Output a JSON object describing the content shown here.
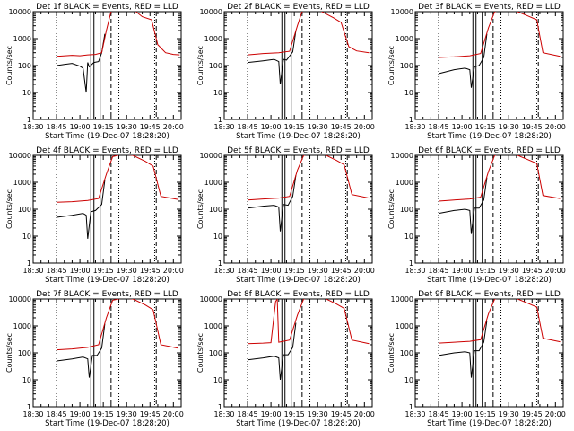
{
  "figure": {
    "ylabel": "Counts/sec",
    "xlabel": "Start Time (19-Dec-07 18:28:20)",
    "legend_suffix": " BLACK = Events, RED = LLD"
  },
  "chart_data": [
    {
      "type": "line",
      "title": "Det 1f BLACK = Events, RED = LLD",
      "xlabel": "Start Time (19-Dec-07 18:28:20)",
      "ylabel": "Counts/sec",
      "y_scale": "log",
      "ylim": [
        1,
        10000
      ],
      "xlim": [
        "18:30",
        "20:05"
      ],
      "x_ticks": [
        "18:30",
        "18:45",
        "19:00",
        "19:15",
        "19:30",
        "19:45",
        "20:00"
      ],
      "y_ticks": [
        "1",
        "10",
        "100",
        "1000",
        "10000"
      ],
      "series": [
        {
          "name": "BLACK = Events",
          "color": "#000000",
          "x": [
            "18:45",
            "18:50",
            "18:55",
            "19:00",
            "19:02",
            "19:04",
            "19:05",
            "19:06",
            "19:09",
            "19:12",
            "19:14",
            "19:16"
          ],
          "values": [
            100,
            110,
            120,
            95,
            80,
            10,
            130,
            90,
            130,
            140,
            300,
            1500
          ]
        },
        {
          "name": "RED = LLD",
          "color": "#cc0000",
          "x": [
            "18:45",
            "18:55",
            "19:00",
            "19:05",
            "19:10",
            "19:14",
            "19:17",
            "19:20",
            "19:24",
            "19:28",
            "19:32",
            "19:36",
            "19:40",
            "19:46",
            "19:50",
            "19:55",
            "20:00",
            "20:04"
          ],
          "values": [
            220,
            240,
            230,
            250,
            260,
            300,
            2000,
            10000,
            12000,
            11000,
            13000,
            10000,
            6500,
            5000,
            600,
            300,
            260,
            250
          ]
        }
      ],
      "markers": {
        "dotted_at": [
          "18:45",
          "19:25",
          "19:48"
        ],
        "solid_at": [
          "19:07",
          "19:09",
          "19:13"
        ],
        "dashed_at": [
          "19:20",
          "19:49"
        ]
      }
    },
    {
      "type": "line",
      "title": "Det 2f BLACK = Events, RED = LLD",
      "xlabel": "Start Time (19-Dec-07 18:28:20)",
      "ylabel": "Counts/sec",
      "y_scale": "log",
      "ylim": [
        1,
        10000
      ],
      "xlim": [
        "18:30",
        "20:05"
      ],
      "x_ticks": [
        "18:30",
        "18:45",
        "19:00",
        "19:15",
        "19:30",
        "19:45",
        "20:00"
      ],
      "y_ticks": [
        "1",
        "10",
        "100",
        "1000",
        "10000"
      ],
      "series": [
        {
          "name": "BLACK = Events",
          "color": "#000000",
          "x": [
            "18:45",
            "18:55",
            "19:02",
            "19:05",
            "19:06",
            "19:08",
            "19:10",
            "19:14",
            "19:16"
          ],
          "values": [
            130,
            150,
            170,
            140,
            20,
            170,
            160,
            320,
            2000
          ]
        },
        {
          "name": "RED = LLD",
          "color": "#cc0000",
          "x": [
            "18:45",
            "18:55",
            "19:05",
            "19:12",
            "19:17",
            "19:20",
            "19:25",
            "19:32",
            "19:40",
            "19:45",
            "19:50",
            "19:55",
            "20:03"
          ],
          "values": [
            250,
            280,
            300,
            340,
            3000,
            10000,
            12000,
            10500,
            6000,
            4000,
            500,
            350,
            300
          ]
        }
      ],
      "markers": {
        "dotted_at": [
          "18:45",
          "19:25",
          "19:48"
        ],
        "solid_at": [
          "19:07",
          "19:09",
          "19:13"
        ],
        "dashed_at": [
          "19:20",
          "19:49"
        ]
      }
    },
    {
      "type": "line",
      "title": "Det 3f BLACK = Events, RED = LLD",
      "xlabel": "Start Time (19-Dec-07 18:28:20)",
      "ylabel": "Counts/sec",
      "y_scale": "log",
      "ylim": [
        1,
        10000
      ],
      "xlim": [
        "18:30",
        "20:05"
      ],
      "x_ticks": [
        "18:30",
        "18:45",
        "19:00",
        "19:15",
        "19:30",
        "19:45",
        "20:00"
      ],
      "y_ticks": [
        "1",
        "10",
        "100",
        "1000",
        "10000"
      ],
      "series": [
        {
          "name": "BLACK = Events",
          "color": "#000000",
          "x": [
            "18:45",
            "18:55",
            "19:02",
            "19:05",
            "19:06",
            "19:08",
            "19:11",
            "19:14",
            "19:16"
          ],
          "values": [
            50,
            70,
            80,
            70,
            15,
            90,
            100,
            200,
            1500
          ]
        },
        {
          "name": "RED = LLD",
          "color": "#cc0000",
          "x": [
            "18:45",
            "18:55",
            "19:05",
            "19:12",
            "19:17",
            "19:21",
            "19:28",
            "19:34",
            "19:42",
            "19:48",
            "19:52",
            "20:03"
          ],
          "values": [
            200,
            210,
            230,
            280,
            2500,
            10000,
            12000,
            11000,
            7000,
            5000,
            300,
            220
          ]
        }
      ],
      "markers": {
        "dotted_at": [
          "18:45",
          "19:25",
          "19:48"
        ],
        "solid_at": [
          "19:07",
          "19:09",
          "19:13"
        ],
        "dashed_at": [
          "19:20",
          "19:49"
        ]
      }
    },
    {
      "type": "line",
      "title": "Det 4f BLACK = Events, RED = LLD",
      "xlabel": "Start Time (19-Dec-07 18:28:20)",
      "ylabel": "Counts/sec",
      "y_scale": "log",
      "ylim": [
        1,
        10000
      ],
      "xlim": [
        "18:30",
        "20:05"
      ],
      "x_ticks": [
        "18:30",
        "18:45",
        "19:00",
        "19:15",
        "19:30",
        "19:45",
        "20:00"
      ],
      "y_ticks": [
        "1",
        "10",
        "100",
        "1000",
        "10000"
      ],
      "series": [
        {
          "name": "BLACK = Events",
          "color": "#000000",
          "x": [
            "18:45",
            "18:55",
            "19:02",
            "19:04",
            "19:05",
            "19:07",
            "19:10",
            "19:14",
            "19:16"
          ],
          "values": [
            50,
            60,
            70,
            60,
            8,
            80,
            90,
            150,
            1200
          ]
        },
        {
          "name": "RED = LLD",
          "color": "#cc0000",
          "x": [
            "18:45",
            "18:55",
            "19:05",
            "19:12",
            "19:17",
            "19:21",
            "19:27",
            "19:34",
            "19:42",
            "19:47",
            "19:52",
            "20:03"
          ],
          "values": [
            180,
            190,
            210,
            250,
            2000,
            9000,
            11000,
            10000,
            6000,
            4000,
            300,
            230
          ]
        }
      ],
      "markers": {
        "dotted_at": [
          "18:45",
          "19:25",
          "19:48"
        ],
        "solid_at": [
          "19:07",
          "19:09",
          "19:13"
        ],
        "dashed_at": [
          "19:20",
          "19:49"
        ]
      }
    },
    {
      "type": "line",
      "title": "Det 5f BLACK = Events, RED = LLD",
      "xlabel": "Start Time (19-Dec-07 18:28:20)",
      "ylabel": "Counts/sec",
      "y_scale": "log",
      "ylim": [
        1,
        10000
      ],
      "xlim": [
        "18:30",
        "20:05"
      ],
      "x_ticks": [
        "18:30",
        "18:45",
        "19:00",
        "19:15",
        "19:30",
        "19:45",
        "20:00"
      ],
      "y_ticks": [
        "1",
        "10",
        "100",
        "1000",
        "10000"
      ],
      "series": [
        {
          "name": "BLACK = Events",
          "color": "#000000",
          "x": [
            "18:45",
            "18:55",
            "19:02",
            "19:05",
            "19:06",
            "19:08",
            "19:11",
            "19:14",
            "19:16"
          ],
          "values": [
            110,
            130,
            140,
            120,
            15,
            150,
            140,
            300,
            1800
          ]
        },
        {
          "name": "RED = LLD",
          "color": "#cc0000",
          "x": [
            "18:45",
            "18:55",
            "19:05",
            "19:12",
            "19:17",
            "19:21",
            "19:28",
            "19:34",
            "19:42",
            "19:47",
            "19:52",
            "20:03"
          ],
          "values": [
            220,
            240,
            260,
            300,
            2800,
            10000,
            12000,
            11000,
            6500,
            4500,
            350,
            260
          ]
        }
      ],
      "markers": {
        "dotted_at": [
          "18:45",
          "19:25",
          "19:48"
        ],
        "solid_at": [
          "19:07",
          "19:09",
          "19:13"
        ],
        "dashed_at": [
          "19:20",
          "19:49"
        ]
      }
    },
    {
      "type": "line",
      "title": "Det 6f BLACK = Events, RED = LLD",
      "xlabel": "Start Time (19-Dec-07 18:28:20)",
      "ylabel": "Counts/sec",
      "y_scale": "log",
      "ylim": [
        1,
        10000
      ],
      "xlim": [
        "18:30",
        "20:05"
      ],
      "x_ticks": [
        "18:30",
        "18:45",
        "19:00",
        "19:15",
        "19:30",
        "19:45",
        "20:00"
      ],
      "y_ticks": [
        "1",
        "10",
        "100",
        "1000",
        "10000"
      ],
      "series": [
        {
          "name": "BLACK = Events",
          "color": "#000000",
          "x": [
            "18:45",
            "18:55",
            "19:02",
            "19:05",
            "19:06",
            "19:08",
            "19:11",
            "19:14",
            "19:16"
          ],
          "values": [
            70,
            90,
            100,
            90,
            12,
            110,
            110,
            220,
            1500
          ]
        },
        {
          "name": "RED = LLD",
          "color": "#cc0000",
          "x": [
            "18:45",
            "18:55",
            "19:05",
            "19:12",
            "19:17",
            "19:21",
            "19:28",
            "19:34",
            "19:42",
            "19:48",
            "19:52",
            "20:03"
          ],
          "values": [
            200,
            220,
            240,
            280,
            2500,
            10000,
            12000,
            11000,
            7000,
            5000,
            320,
            250
          ]
        }
      ],
      "markers": {
        "dotted_at": [
          "18:45",
          "19:25",
          "19:48"
        ],
        "solid_at": [
          "19:07",
          "19:09",
          "19:13"
        ],
        "dashed_at": [
          "19:20",
          "19:49"
        ]
      }
    },
    {
      "type": "line",
      "title": "Det 7f BLACK = Events, RED = LLD",
      "xlabel": "Start Time (19-Dec-07 18:28:20)",
      "ylabel": "Counts/sec",
      "y_scale": "log",
      "ylim": [
        1,
        10000
      ],
      "xlim": [
        "18:30",
        "20:05"
      ],
      "x_ticks": [
        "18:30",
        "18:45",
        "19:00",
        "19:15",
        "19:30",
        "19:45",
        "20:00"
      ],
      "y_ticks": [
        "1",
        "10",
        "100",
        "1000",
        "10000"
      ],
      "series": [
        {
          "name": "BLACK = Events",
          "color": "#000000",
          "x": [
            "18:45",
            "18:55",
            "19:02",
            "19:05",
            "19:06",
            "19:08",
            "19:11",
            "19:14",
            "19:16"
          ],
          "values": [
            50,
            60,
            70,
            60,
            12,
            80,
            80,
            150,
            1200
          ]
        },
        {
          "name": "RED = LLD",
          "color": "#cc0000",
          "x": [
            "18:45",
            "18:55",
            "19:05",
            "19:12",
            "19:17",
            "19:21",
            "19:28",
            "19:34",
            "19:42",
            "19:47",
            "19:52",
            "20:03"
          ],
          "values": [
            130,
            140,
            160,
            200,
            2000,
            9000,
            11000,
            10000,
            6000,
            4000,
            200,
            150
          ]
        }
      ],
      "markers": {
        "dotted_at": [
          "18:45",
          "19:25",
          "19:48"
        ],
        "solid_at": [
          "19:07",
          "19:09",
          "19:13"
        ],
        "dashed_at": [
          "19:20",
          "19:49"
        ]
      }
    },
    {
      "type": "line",
      "title": "Det 8f BLACK = Events, RED = LLD",
      "xlabel": "Start Time (19-Dec-07 18:28:20)",
      "ylabel": "Counts/sec",
      "y_scale": "log",
      "ylim": [
        1,
        10000
      ],
      "xlim": [
        "18:30",
        "20:05"
      ],
      "x_ticks": [
        "18:30",
        "18:45",
        "19:00",
        "19:15",
        "19:30",
        "19:45",
        "20:00"
      ],
      "y_ticks": [
        "1",
        "10",
        "100",
        "1000",
        "10000"
      ],
      "series": [
        {
          "name": "BLACK = Events",
          "color": "#000000",
          "x": [
            "18:45",
            "18:55",
            "19:02",
            "19:05",
            "19:06",
            "19:08",
            "19:11",
            "19:14",
            "19:16"
          ],
          "values": [
            55,
            65,
            75,
            65,
            10,
            85,
            85,
            160,
            1300
          ]
        },
        {
          "name": "RED = LLD",
          "color": "#cc0000",
          "x": [
            "18:45",
            "18:55",
            "19:00",
            "19:03",
            "19:04",
            "19:05",
            "19:12",
            "19:17",
            "19:21",
            "19:28",
            "19:34",
            "19:42",
            "19:47",
            "19:52",
            "20:03"
          ],
          "values": [
            220,
            230,
            240,
            8000,
            10000,
            250,
            300,
            2500,
            10000,
            12000,
            11000,
            6500,
            4500,
            300,
            220
          ]
        }
      ],
      "markers": {
        "dotted_at": [
          "18:45",
          "19:25",
          "19:48"
        ],
        "solid_at": [
          "19:07",
          "19:09",
          "19:13"
        ],
        "dashed_at": [
          "19:20",
          "19:49"
        ]
      }
    },
    {
      "type": "line",
      "title": "Det 9f BLACK = Events, RED = LLD",
      "xlabel": "Start Time (19-Dec-07 18:28:20)",
      "ylabel": "Counts/sec",
      "y_scale": "log",
      "ylim": [
        1,
        10000
      ],
      "xlim": [
        "18:30",
        "20:05"
      ],
      "x_ticks": [
        "18:30",
        "18:45",
        "19:00",
        "19:15",
        "19:30",
        "19:45",
        "20:00"
      ],
      "y_ticks": [
        "1",
        "10",
        "100",
        "1000",
        "10000"
      ],
      "series": [
        {
          "name": "BLACK = Events",
          "color": "#000000",
          "x": [
            "18:45",
            "18:55",
            "19:02",
            "19:05",
            "19:06",
            "19:08",
            "19:11",
            "19:14",
            "19:16"
          ],
          "values": [
            80,
            100,
            110,
            100,
            12,
            120,
            120,
            250,
            1600
          ]
        },
        {
          "name": "RED = LLD",
          "color": "#cc0000",
          "x": [
            "18:45",
            "18:55",
            "19:05",
            "19:12",
            "19:17",
            "19:21",
            "19:28",
            "19:34",
            "19:42",
            "19:48",
            "19:52",
            "20:03"
          ],
          "values": [
            230,
            250,
            270,
            310,
            2800,
            10000,
            12000,
            11000,
            7000,
            5000,
            350,
            260
          ]
        }
      ],
      "markers": {
        "dotted_at": [
          "18:45",
          "19:25",
          "19:48"
        ],
        "solid_at": [
          "19:07",
          "19:09",
          "19:13"
        ],
        "dashed_at": [
          "19:20",
          "19:49"
        ]
      }
    }
  ]
}
